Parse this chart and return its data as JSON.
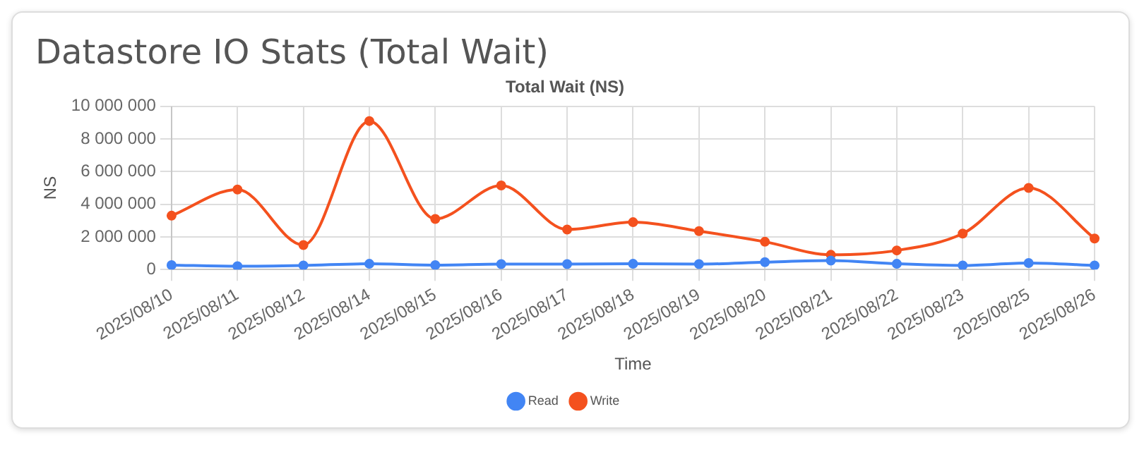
{
  "chart_data": {
    "type": "line",
    "title": "Datastore IO Stats (Total Wait)",
    "subtitle": "Total Wait (NS)",
    "xlabel": "Time",
    "ylabel": "NS",
    "categories": [
      "2025/08/10",
      "2025/08/11",
      "2025/08/12",
      "2025/08/14",
      "2025/08/15",
      "2025/08/16",
      "2025/08/17",
      "2025/08/18",
      "2025/08/19",
      "2025/08/20",
      "2025/08/21",
      "2025/08/22",
      "2025/08/23",
      "2025/08/25",
      "2025/08/26"
    ],
    "series": [
      {
        "name": "Read",
        "color": "#4285f4",
        "values": [
          270000,
          200000,
          250000,
          350000,
          270000,
          330000,
          330000,
          350000,
          330000,
          450000,
          550000,
          350000,
          250000,
          400000,
          250000
        ]
      },
      {
        "name": "Write",
        "color": "#f4511e",
        "values": [
          3300000,
          4900000,
          1500000,
          9100000,
          3100000,
          5150000,
          2450000,
          2900000,
          2350000,
          1700000,
          900000,
          1170000,
          2200000,
          5000000,
          1900000
        ]
      }
    ],
    "ylim": [
      0,
      10000000
    ],
    "yticks": [
      {
        "value": 0,
        "label": "0"
      },
      {
        "value": 2000000,
        "label": "2 000 000"
      },
      {
        "value": 4000000,
        "label": "4 000 000"
      },
      {
        "value": 6000000,
        "label": "6 000 000"
      },
      {
        "value": 8000000,
        "label": "8 000 000"
      },
      {
        "value": 10000000,
        "label": "10 000 000"
      }
    ],
    "grid": true,
    "legend": "bottom",
    "marker": "circle",
    "line_style": "solid"
  }
}
